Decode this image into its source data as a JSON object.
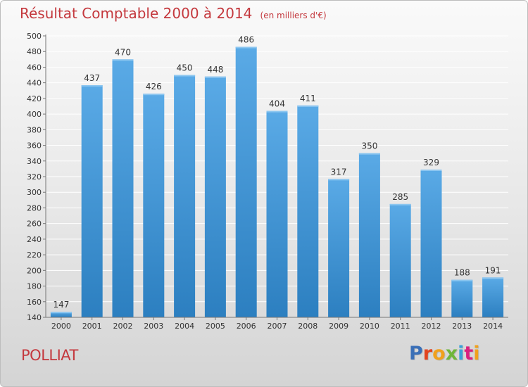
{
  "header": {
    "title": "Résultat Comptable 2000 à 2014",
    "unit_note": "(en milliers d'€)"
  },
  "footer": {
    "commune": "POLLIAT",
    "brand_letters": [
      "P",
      "r",
      "o",
      "x",
      "i",
      "t",
      "i"
    ],
    "brand_colors": [
      "#3a6fb7",
      "#e2431f",
      "#f0a11d",
      "#6fb63b",
      "#3aa2d8",
      "#d9207f",
      "#f0a11d"
    ]
  },
  "chart_data": {
    "type": "bar",
    "title": "Résultat Comptable 2000 à 2014",
    "subtitle": "(en milliers d'€)",
    "xlabel": "",
    "ylabel": "",
    "categories": [
      "2000",
      "2001",
      "2002",
      "2003",
      "2004",
      "2005",
      "2006",
      "2007",
      "2008",
      "2009",
      "2010",
      "2011",
      "2012",
      "2013",
      "2014"
    ],
    "values": [
      147,
      437,
      470,
      426,
      450,
      448,
      486,
      404,
      411,
      317,
      350,
      285,
      329,
      188,
      191
    ],
    "ylim": [
      140,
      500
    ],
    "yticks": [
      140,
      160,
      180,
      200,
      220,
      240,
      260,
      280,
      300,
      320,
      340,
      360,
      380,
      400,
      420,
      440,
      460,
      480,
      500
    ],
    "grid": true,
    "bar_color_top": "#5aaae6",
    "bar_color_bottom": "#2c7fc0",
    "grid_color": "#ffffff"
  }
}
